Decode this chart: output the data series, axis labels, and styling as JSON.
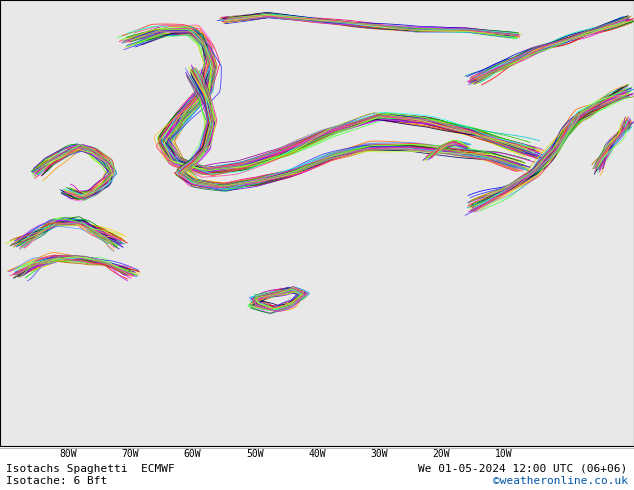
{
  "title_left": "Isotachs Spaghetti  ECMWF",
  "title_right": "We 01-05-2024 12:00 UTC (06+06)",
  "subtitle_left": "Isotache: 6 Bft",
  "subtitle_right": "©weatheronline.co.uk",
  "subtitle_right_color": "#0055aa",
  "land_color": "#c8f0c8",
  "ocean_color": "#e8e8e8",
  "coastline_color": "#888888",
  "grid_color": "#cccccc",
  "text_color": "#000000",
  "bottom_bar_color": "#ffffff",
  "figsize": [
    6.34,
    4.9
  ],
  "dpi": 100,
  "lon_min": -91,
  "lon_max": 11,
  "lat_min": -12,
  "lat_max": 76,
  "x_ticks": [
    -80,
    -70,
    -60,
    -50,
    -40,
    -30,
    -20,
    -10
  ],
  "x_tick_labels": [
    "80W",
    "70W",
    "60W",
    "50W",
    "40W",
    "30W",
    "20W",
    "10W"
  ],
  "y_ticks": [
    0,
    10,
    20,
    30,
    40,
    50,
    60,
    70
  ],
  "font_size_title": 8,
  "font_size_subtitle": 8,
  "font_size_ticks": 7,
  "num_members": 51,
  "member_colors": [
    "#FF0000",
    "#00CC00",
    "#0000FF",
    "#FF8800",
    "#AA00AA",
    "#00AACC",
    "#FFCC00",
    "#FF00CC",
    "#008844",
    "#4400CC",
    "#FF4444",
    "#44FF44",
    "#4444FF",
    "#FFAA44",
    "#CC44FF",
    "#00CCCC",
    "#FF4499",
    "#AAFF00",
    "#FF0066",
    "#66FF22",
    "#FF6600",
    "#0066FF",
    "#66FF66",
    "#FF66FF",
    "#6699FF",
    "#FF9900",
    "#009900",
    "#990099",
    "#009999",
    "#999900",
    "#CC0000",
    "#0000CC",
    "#33CC00",
    "#CC6600",
    "#6600CC",
    "#00CCCC",
    "#CCCC00",
    "#CC00CC",
    "#006600",
    "#000066",
    "#FF3333",
    "#33FF33",
    "#3333FF",
    "#FFBB33",
    "#BB33FF",
    "#33FFEE",
    "#FF33AA",
    "#BBFF33",
    "#FF3388",
    "#88FF33",
    "#888888"
  ]
}
